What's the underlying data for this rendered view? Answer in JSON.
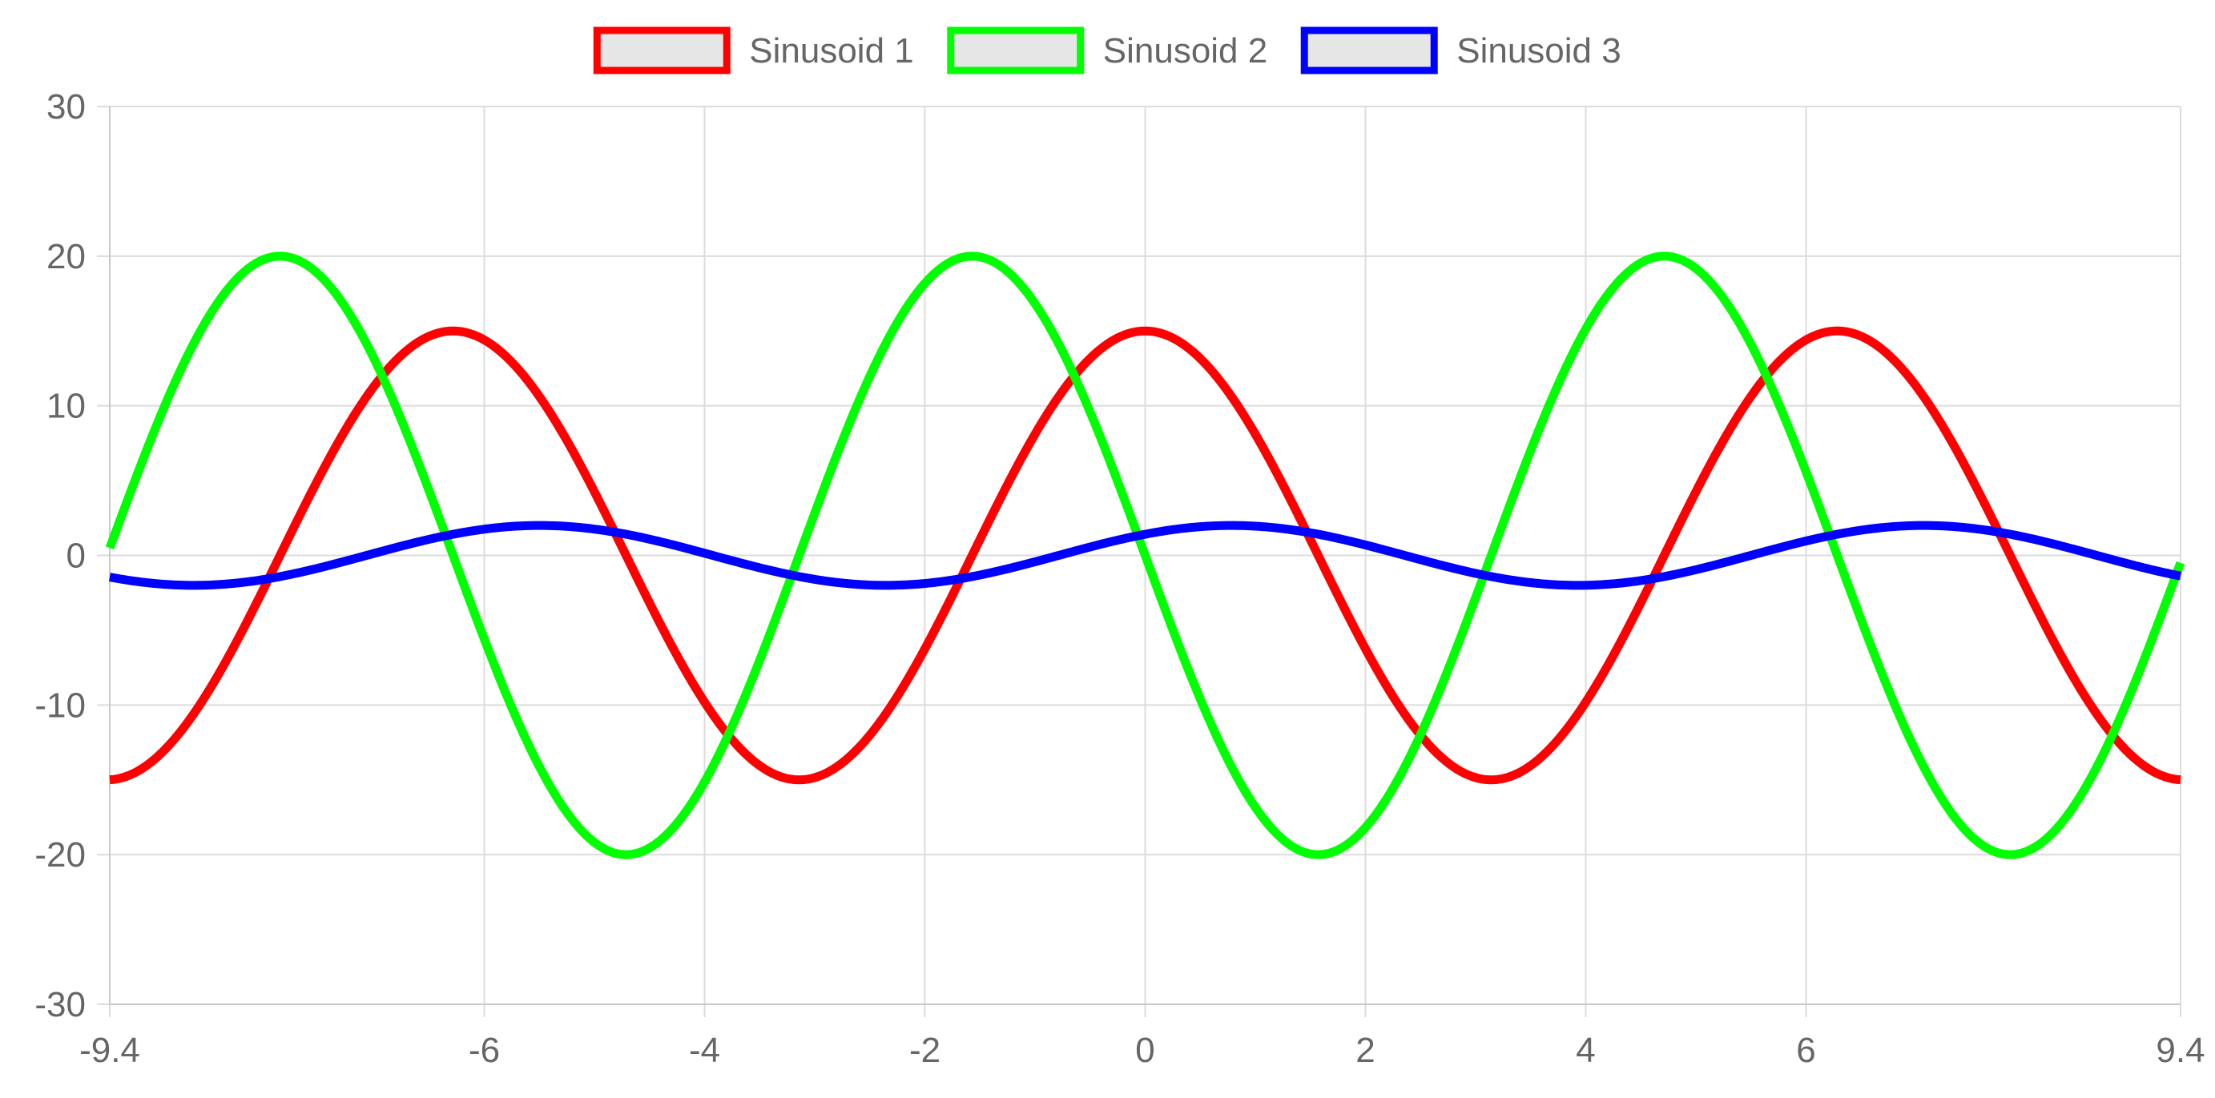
{
  "chart_data": {
    "type": "line",
    "title": "",
    "xlabel": "",
    "ylabel": "",
    "xlim": [
      -9.4,
      9.4
    ],
    "ylim": [
      -30,
      30
    ],
    "x_ticks": [
      -9.4,
      -6,
      -4,
      -2,
      0,
      2,
      4,
      6,
      9.4
    ],
    "x_tick_labels": [
      "-9.4",
      "-6",
      "-4",
      "-2",
      "0",
      "2",
      "4",
      "6",
      "9.4"
    ],
    "y_ticks": [
      30,
      20,
      10,
      0,
      -10,
      -20,
      -30
    ],
    "y_tick_labels": [
      "30",
      "20",
      "10",
      "0",
      "-10",
      "-20",
      "-30"
    ],
    "grid": true,
    "legend_position": "top-center",
    "series": [
      {
        "name": "Sinusoid 1",
        "color": "#ff0000",
        "amplitude": 15,
        "frequency": 1,
        "phase": 0,
        "function": "cos",
        "x": [
          -9.4,
          -8.4,
          -7.4,
          -6.2,
          -5.2,
          -4.2,
          -3.1,
          -2.1,
          -1.1,
          0,
          1,
          2,
          3.1,
          4.2,
          5.2,
          6.2,
          7.4,
          8.4,
          9.4
        ],
        "y": [
          -15,
          -9,
          6,
          15,
          7,
          -7,
          -15,
          -8,
          7,
          15,
          8,
          -6,
          -15,
          -7,
          7,
          15,
          6,
          -8,
          -15
        ]
      },
      {
        "name": "Sinusoid 2",
        "color": "#00ff00",
        "amplitude": 20,
        "frequency": 1,
        "phase": 0,
        "function": "-sin",
        "x": [
          -9.4,
          -7.85,
          -6.3,
          -4.7,
          -3.1,
          -1.6,
          0,
          1.6,
          3.1,
          4.7,
          6.3,
          7.85,
          9.4
        ],
        "y": [
          0,
          20,
          0,
          -20,
          0,
          20,
          0,
          -20,
          0,
          20,
          0,
          -20,
          0
        ]
      },
      {
        "name": "Sinusoid 3",
        "color": "#0000ff",
        "amplitude": 2,
        "frequency": 1,
        "phase": 0.785,
        "function": "sin",
        "x": [
          -9.4,
          -8.6,
          -7.1,
          -5.5,
          -3.9,
          -2.3,
          -0.8,
          0,
          0.8,
          2.4,
          3.9,
          5.5,
          7.1,
          8.6,
          9.4
        ],
        "y": [
          -1.4,
          -2,
          0,
          2,
          0,
          -2,
          0,
          1.4,
          2,
          0,
          -2,
          0,
          2,
          0,
          -1.4
        ]
      }
    ]
  }
}
